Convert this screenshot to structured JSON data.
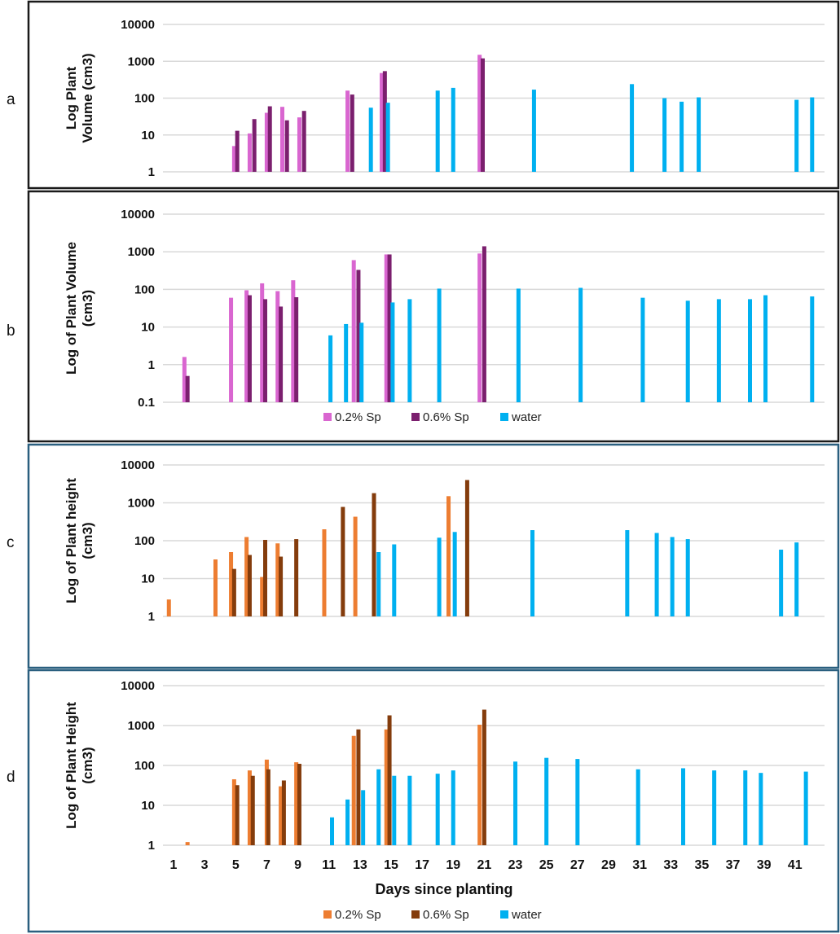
{
  "chart_data": [
    {
      "type": "bar",
      "panel_label": "a",
      "yscale": "log",
      "ylim": [
        1,
        10000
      ],
      "yticks": [
        "1",
        "10",
        "100",
        "1000",
        "10000"
      ],
      "ylabel": [
        "Log Plant",
        "Volume (cm3)"
      ],
      "border_color": "#1a1a1a",
      "legend": false,
      "series": [
        {
          "name": "0.2% Sp",
          "color": "#d966d0",
          "points": [
            [
              4.9,
              5
            ],
            [
              5.9,
              11
            ],
            [
              7.0,
              40
            ],
            [
              8.0,
              58
            ],
            [
              9.1,
              30
            ],
            [
              12.2,
              160
            ],
            [
              14.4,
              480
            ],
            [
              20.7,
              1500
            ]
          ]
        },
        {
          "name": "0.6% Sp",
          "color": "#7b1f6e",
          "points": [
            [
              5.1,
              13
            ],
            [
              6.2,
              27
            ],
            [
              7.2,
              60
            ],
            [
              8.3,
              25
            ],
            [
              9.4,
              45
            ],
            [
              12.5,
              125
            ],
            [
              14.6,
              540
            ],
            [
              20.9,
              1200
            ]
          ]
        },
        {
          "name": "water",
          "color": "#00b0f0",
          "points": [
            [
              13.7,
              55
            ],
            [
              14.8,
              75
            ],
            [
              18.0,
              160
            ],
            [
              19.0,
              190
            ],
            [
              24.2,
              170
            ],
            [
              30.5,
              240
            ],
            [
              32.6,
              100
            ],
            [
              33.7,
              80
            ],
            [
              34.8,
              105
            ],
            [
              41.1,
              90
            ],
            [
              42.1,
              105
            ]
          ]
        }
      ]
    },
    {
      "type": "bar",
      "panel_label": "b",
      "yscale": "log",
      "ylim": [
        0.1,
        10000
      ],
      "yticks": [
        "0.1",
        "1",
        "10",
        "100",
        "1000",
        "10000"
      ],
      "ylabel": [
        "Log of Plant Volume",
        "(cm3)"
      ],
      "border_color": "#1a1a1a",
      "legend": true,
      "series": [
        {
          "name": "0.2% Sp",
          "color": "#d966d0",
          "points": [
            [
              1.7,
              1.6
            ],
            [
              4.7,
              60
            ],
            [
              5.7,
              95
            ],
            [
              6.7,
              145
            ],
            [
              7.7,
              90
            ],
            [
              8.7,
              175
            ],
            [
              12.6,
              600
            ],
            [
              14.7,
              850
            ],
            [
              20.7,
              900
            ]
          ]
        },
        {
          "name": "0.6% Sp",
          "color": "#7b1f6e",
          "points": [
            [
              1.9,
              0.5
            ],
            [
              5.9,
              70
            ],
            [
              6.9,
              55
            ],
            [
              7.9,
              35
            ],
            [
              8.9,
              62
            ],
            [
              12.9,
              330
            ],
            [
              14.9,
              850
            ],
            [
              21.0,
              1400
            ]
          ]
        },
        {
          "name": "water",
          "color": "#00b0f0",
          "points": [
            [
              11.1,
              6
            ],
            [
              12.1,
              12
            ],
            [
              13.1,
              13
            ],
            [
              15.1,
              45
            ],
            [
              16.2,
              55
            ],
            [
              18.1,
              105
            ],
            [
              23.2,
              105
            ],
            [
              27.2,
              110
            ],
            [
              31.2,
              60
            ],
            [
              34.1,
              50
            ],
            [
              36.1,
              55
            ],
            [
              38.1,
              55
            ],
            [
              39.1,
              70
            ],
            [
              42.1,
              65
            ]
          ]
        }
      ]
    },
    {
      "type": "bar",
      "panel_label": "c",
      "yscale": "log",
      "ylim": [
        1,
        10000
      ],
      "yticks": [
        "1",
        "10",
        "100",
        "1000",
        "10000"
      ],
      "ylabel": [
        "Log of Plant height",
        "(cm3)"
      ],
      "border_color": "#2a5f7f",
      "legend": false,
      "series": [
        {
          "name": "0.2% Sp",
          "color": "#ed7d31",
          "points": [
            [
              0.7,
              2.8
            ],
            [
              3.7,
              32
            ],
            [
              4.7,
              50
            ],
            [
              5.7,
              125
            ],
            [
              6.7,
              11
            ],
            [
              7.7,
              85
            ],
            [
              10.7,
              200
            ],
            [
              12.7,
              430
            ],
            [
              18.7,
              1500
            ]
          ]
        },
        {
          "name": "0.6% Sp",
          "color": "#843c0c",
          "points": [
            [
              4.9,
              18
            ],
            [
              5.9,
              42
            ],
            [
              6.9,
              105
            ],
            [
              7.9,
              38
            ],
            [
              8.9,
              110
            ],
            [
              11.9,
              780
            ],
            [
              13.9,
              1800
            ],
            [
              19.9,
              4000
            ]
          ]
        },
        {
          "name": "water",
          "color": "#00b0f0",
          "points": [
            [
              14.2,
              50
            ],
            [
              15.2,
              80
            ],
            [
              18.1,
              120
            ],
            [
              19.1,
              170
            ],
            [
              24.1,
              190
            ],
            [
              30.2,
              190
            ],
            [
              32.1,
              160
            ],
            [
              33.1,
              125
            ],
            [
              34.1,
              110
            ],
            [
              40.1,
              58
            ],
            [
              41.1,
              90
            ]
          ]
        }
      ]
    },
    {
      "type": "bar",
      "panel_label": "d",
      "yscale": "log",
      "ylim": [
        1,
        10000
      ],
      "yticks": [
        "1",
        "10",
        "100",
        "1000",
        "10000"
      ],
      "ylabel": [
        "Log of Plant Height",
        "(cm3)"
      ],
      "border_color": "#2a5f7f",
      "legend": true,
      "xlabel": "Days since planting",
      "xticks": [
        "1",
        "3",
        "5",
        "7",
        "9",
        "11",
        "13",
        "15",
        "17",
        "19",
        "21",
        "23",
        "25",
        "27",
        "29",
        "31",
        "33",
        "35",
        "37",
        "39",
        "41"
      ],
      "series": [
        {
          "name": "0.2% Sp",
          "color": "#ed7d31",
          "points": [
            [
              1.9,
              1.2
            ],
            [
              4.9,
              45
            ],
            [
              5.9,
              75
            ],
            [
              7.0,
              140
            ],
            [
              7.9,
              30
            ],
            [
              8.9,
              120
            ],
            [
              12.6,
              550
            ],
            [
              14.7,
              800
            ],
            [
              20.7,
              1050
            ]
          ]
        },
        {
          "name": "0.6% Sp",
          "color": "#843c0c",
          "points": [
            [
              5.1,
              32
            ],
            [
              6.1,
              55
            ],
            [
              7.1,
              80
            ],
            [
              8.1,
              42
            ],
            [
              9.1,
              110
            ],
            [
              12.9,
              800
            ],
            [
              14.9,
              1800
            ],
            [
              21.0,
              2500
            ]
          ]
        },
        {
          "name": "water",
          "color": "#00b0f0",
          "points": [
            [
              11.2,
              5
            ],
            [
              12.2,
              14
            ],
            [
              13.2,
              24
            ],
            [
              14.2,
              80
            ],
            [
              15.2,
              55
            ],
            [
              16.2,
              55
            ],
            [
              18.0,
              62
            ],
            [
              19.0,
              75
            ],
            [
              23.0,
              125
            ],
            [
              25.0,
              155
            ],
            [
              27.0,
              145
            ],
            [
              30.9,
              80
            ],
            [
              33.8,
              85
            ],
            [
              35.8,
              75
            ],
            [
              37.8,
              75
            ],
            [
              38.8,
              65
            ],
            [
              41.7,
              70
            ]
          ]
        }
      ]
    }
  ]
}
